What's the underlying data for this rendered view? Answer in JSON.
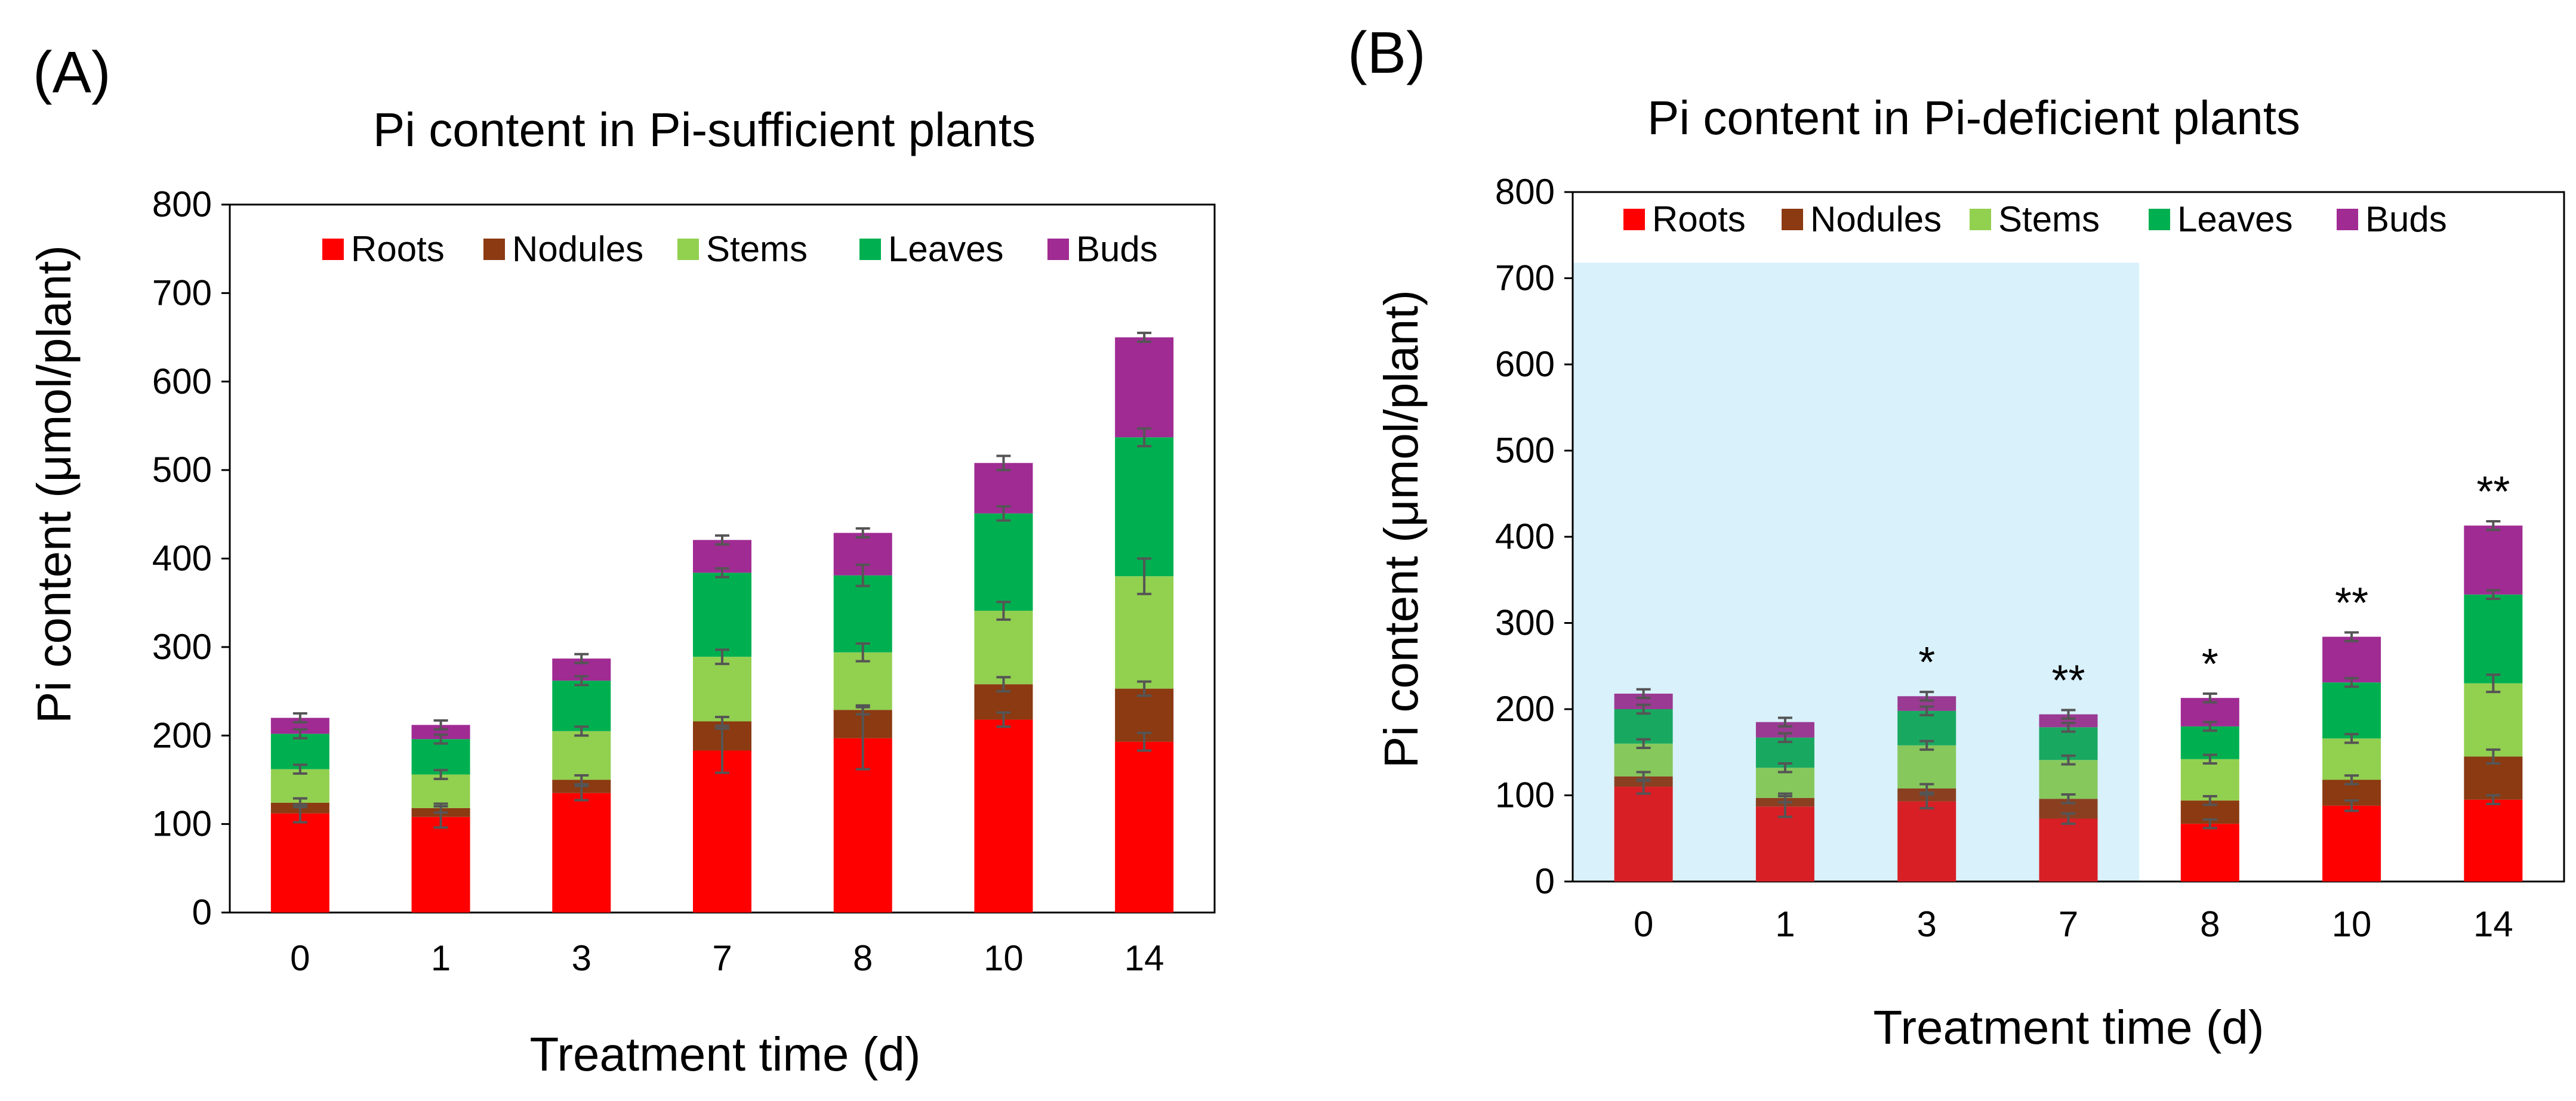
{
  "colors": {
    "Roots": "#ff0000",
    "Nodules": "#8b3a12",
    "Stems": "#92d050",
    "Leaves": "#00b050",
    "Buds": "#a02b93",
    "shade": "#d9f1fb",
    "error": "#555555",
    "roots_shaded": "#d81f26",
    "nodules_shaded": "#8a4020",
    "stems_shaded": "#86c85c",
    "leaves_shaded": "#19a860",
    "buds_shaded": "#9a3a92"
  },
  "chart_data": [
    {
      "panel_label": "(A)",
      "type": "bar",
      "stacked": true,
      "title": "Pi content in Pi-sufficient plants",
      "xlabel": "Treatment time (d)",
      "ylabel": "Pi content (μmol/plant)",
      "ylim": [
        0,
        800
      ],
      "yticks": [
        0,
        100,
        200,
        300,
        400,
        500,
        600,
        700,
        800
      ],
      "categories": [
        "0",
        "1",
        "3",
        "7",
        "8",
        "10",
        "14"
      ],
      "legend": [
        "Roots",
        "Nodules",
        "Stems",
        "Leaves",
        "Buds"
      ],
      "legend_position": "top",
      "series": [
        {
          "name": "Roots",
          "values": [
            112,
            108,
            135,
            183,
            197,
            218,
            193
          ]
        },
        {
          "name": "Nodules",
          "values": [
            12,
            10,
            15,
            33,
            32,
            40,
            60
          ]
        },
        {
          "name": "Stems",
          "values": [
            38,
            38,
            55,
            73,
            65,
            83,
            127
          ]
        },
        {
          "name": "Leaves",
          "values": [
            40,
            40,
            57,
            95,
            87,
            110,
            157
          ]
        },
        {
          "name": "Buds",
          "values": [
            18,
            16,
            25,
            37,
            48,
            57,
            113
          ]
        }
      ],
      "error_bars": [
        [
          10,
          12,
          8,
          25,
          35,
          8,
          10
        ],
        [
          5,
          5,
          5,
          5,
          5,
          8,
          8
        ],
        [
          5,
          5,
          5,
          8,
          10,
          10,
          20
        ],
        [
          5,
          5,
          5,
          5,
          12,
          8,
          10
        ],
        [
          5,
          5,
          5,
          5,
          5,
          8,
          5
        ]
      ],
      "annotations": [
        "",
        "",
        "",
        "",
        "",
        "",
        ""
      ]
    },
    {
      "panel_label": "(B)",
      "type": "bar",
      "stacked": true,
      "title": "Pi content in Pi-deficient plants",
      "xlabel": "Treatment time (d)",
      "ylabel": "Pi content (μmol/plant)",
      "ylim": [
        0,
        800
      ],
      "yticks": [
        0,
        100,
        200,
        300,
        400,
        500,
        600,
        700,
        800
      ],
      "categories": [
        "0",
        "1",
        "3",
        "7",
        "8",
        "10",
        "14"
      ],
      "legend": [
        "Roots",
        "Nodules",
        "Stems",
        "Leaves",
        "Buds"
      ],
      "legend_position": "top",
      "shaded_categories": [
        "0",
        "1",
        "3",
        "7"
      ],
      "shade_top": 718,
      "series": [
        {
          "name": "Roots",
          "values": [
            110,
            87,
            93,
            73,
            67,
            88,
            95
          ]
        },
        {
          "name": "Nodules",
          "values": [
            12,
            10,
            15,
            23,
            27,
            30,
            50
          ]
        },
        {
          "name": "Stems",
          "values": [
            38,
            35,
            50,
            45,
            48,
            48,
            85
          ]
        },
        {
          "name": "Leaves",
          "values": [
            40,
            35,
            40,
            38,
            38,
            65,
            103
          ]
        },
        {
          "name": "Buds",
          "values": [
            18,
            18,
            17,
            15,
            33,
            53,
            80
          ]
        }
      ],
      "error_bars": [
        [
          8,
          12,
          8,
          6,
          5,
          6,
          5
        ],
        [
          5,
          5,
          5,
          5,
          5,
          5,
          8
        ],
        [
          5,
          5,
          5,
          5,
          5,
          5,
          10
        ],
        [
          5,
          5,
          5,
          5,
          5,
          5,
          5
        ],
        [
          5,
          5,
          5,
          5,
          5,
          5,
          5
        ]
      ],
      "annotations": [
        "",
        "",
        "*",
        "**",
        "*",
        "**",
        "**"
      ]
    }
  ]
}
